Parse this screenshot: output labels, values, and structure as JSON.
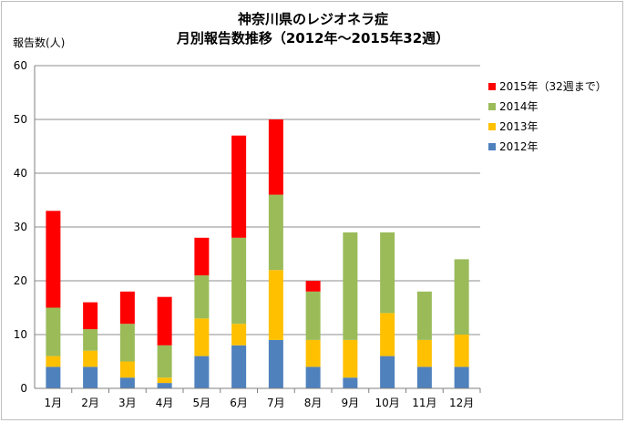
{
  "chart_data": {
    "type": "bar",
    "stacked": true,
    "title_lines": [
      "神奈川県のレジオネラ症",
      "月別報告数推移（2012年～2015年32週）"
    ],
    "ylabel": "報告数(人)",
    "xlabel": "",
    "ylim": [
      0,
      60
    ],
    "yticks": [
      "0",
      "10",
      "20",
      "30",
      "40",
      "50",
      "60"
    ],
    "categories": [
      "1月",
      "2月",
      "3月",
      "4月",
      "5月",
      "6月",
      "7月",
      "8月",
      "9月",
      "10月",
      "11月",
      "12月"
    ],
    "series": [
      {
        "name": "2012年",
        "color": "#4f81bd",
        "values": [
          4,
          4,
          2,
          1,
          6,
          8,
          9,
          4,
          2,
          6,
          4,
          4
        ]
      },
      {
        "name": "2013年",
        "color": "#ffc000",
        "values": [
          2,
          3,
          3,
          1,
          7,
          4,
          13,
          5,
          7,
          8,
          5,
          6
        ]
      },
      {
        "name": "2014年",
        "color": "#9bbb59",
        "values": [
          9,
          4,
          7,
          6,
          8,
          16,
          14,
          9,
          20,
          15,
          9,
          14
        ]
      },
      {
        "name": "2015年（32週まで）",
        "color": "#ff0000",
        "values": [
          18,
          5,
          6,
          9,
          7,
          19,
          14,
          2,
          0,
          0,
          0,
          0
        ]
      }
    ],
    "legend_order": [
      "2015年（32週まで）",
      "2014年",
      "2013年",
      "2012年"
    ],
    "legend_position": "right",
    "grid": "horizontal"
  }
}
